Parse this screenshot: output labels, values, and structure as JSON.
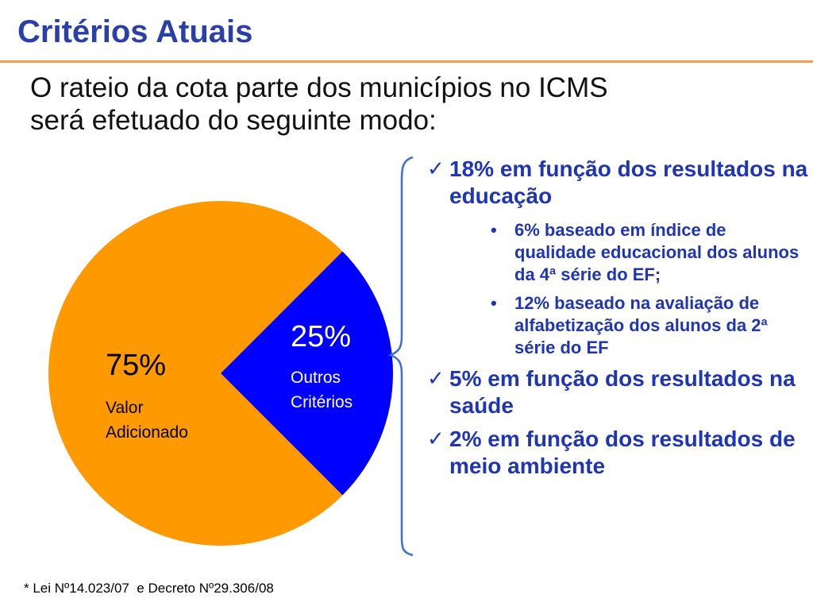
{
  "header": {
    "title": "Critérios Atuais",
    "subtitle_line1": "O rateio da cota parte dos municípios no ICMS",
    "subtitle_line2": "será efetuado do seguinte modo:"
  },
  "chart_data": {
    "type": "pie",
    "title": "",
    "slices": [
      {
        "pct_label": "75%",
        "label_line1": "Valor",
        "label_line2": "Adicionado",
        "value": 75,
        "color": "#ff9900"
      },
      {
        "pct_label": "25%",
        "label_line1": "Outros",
        "label_line2": "Critérios",
        "value": 25,
        "color": "#0000ff"
      }
    ]
  },
  "criteria": {
    "items": [
      {
        "check_icon": "✓",
        "text": "18% em função dos resultados na educação",
        "subitems": [
          {
            "bullet": "•",
            "text": "6% baseado em índice de qualidade educacional dos alunos da 4ª série do EF;"
          },
          {
            "bullet": "•",
            "text": "12% baseado na avaliação de alfabetização dos alunos da 2ª série do EF"
          }
        ]
      },
      {
        "check_icon": "✓",
        "text": "5% em função dos resultados na saúde",
        "subitems": []
      },
      {
        "check_icon": "✓",
        "text": "2% em função dos resultados de meio ambiente",
        "subitems": []
      }
    ]
  },
  "colors": {
    "title": "#2a3fa8",
    "rule": "#f6a04d",
    "criteria_text": "#1e35b8",
    "brace": "#3b6fd1"
  },
  "footnote": "* Lei Nº14.023/07  e Decreto Nº29.306/08"
}
